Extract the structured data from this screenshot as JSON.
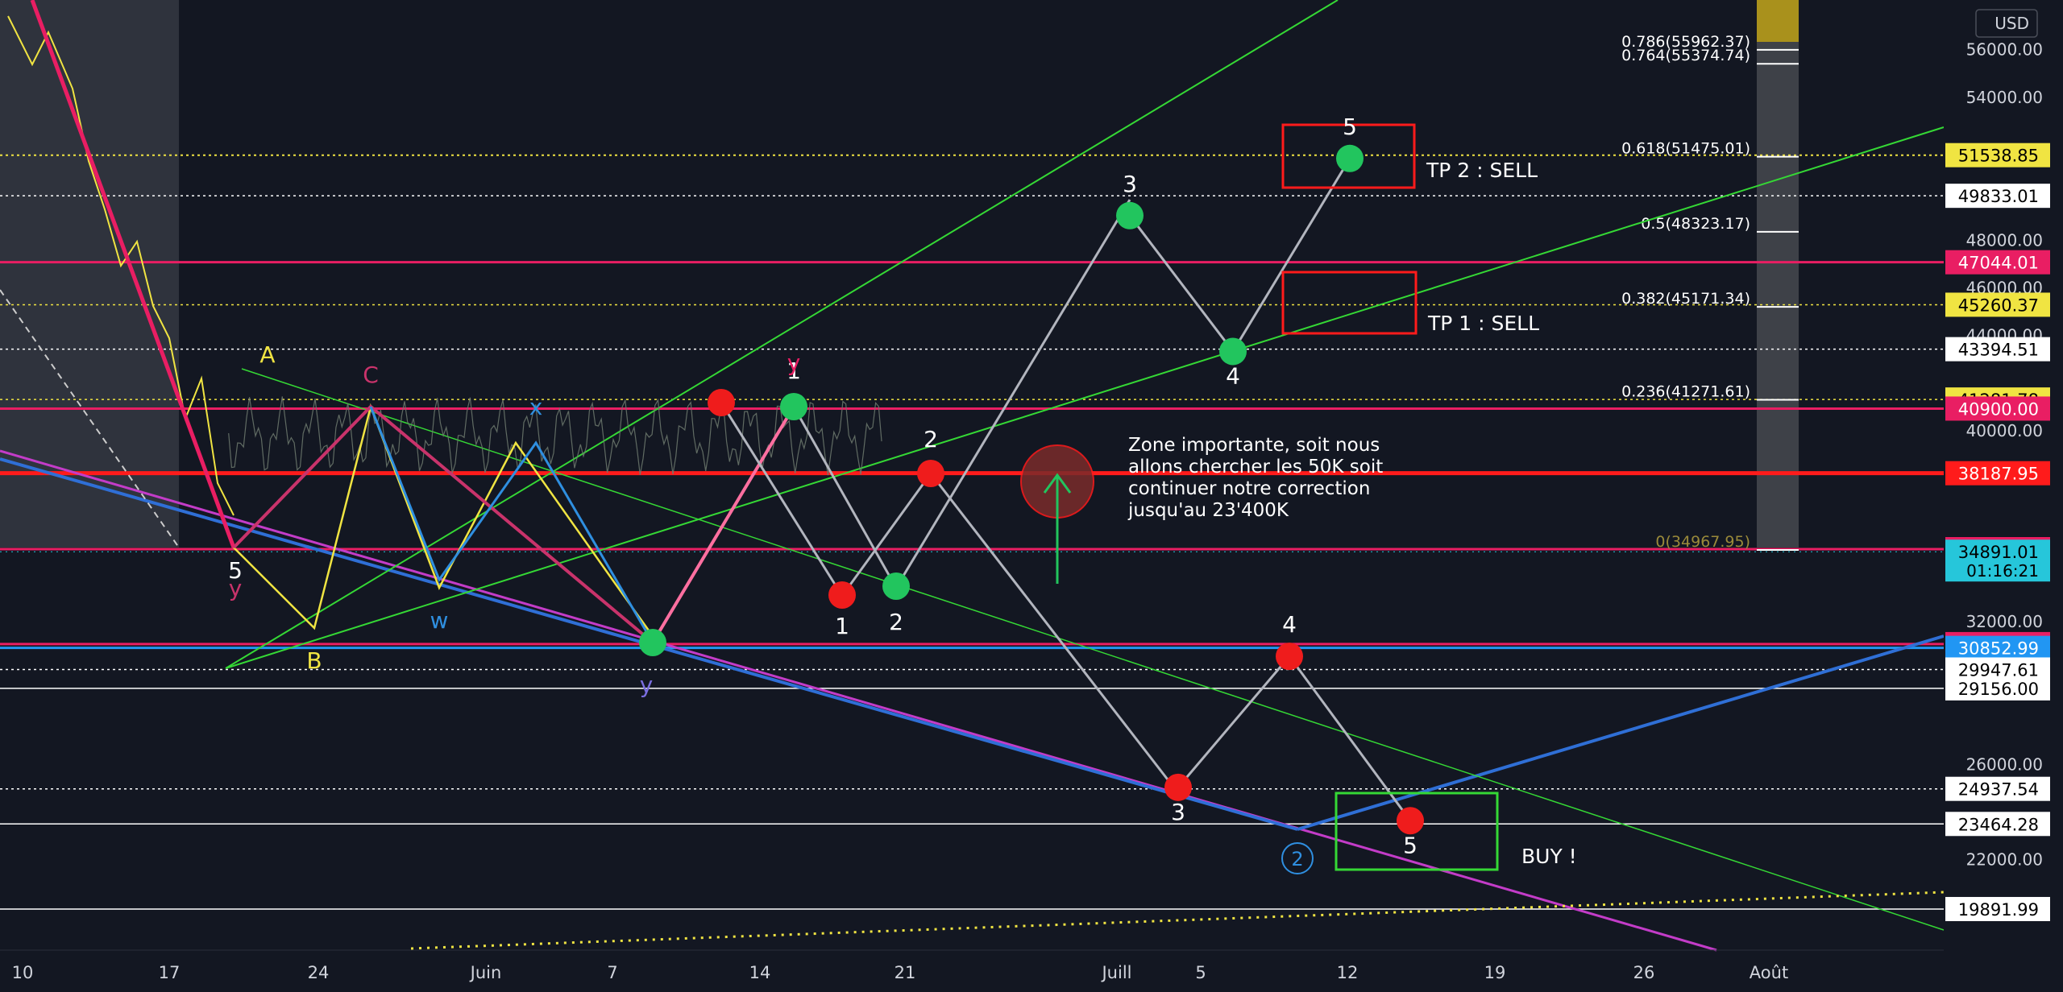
{
  "chart_data": {
    "type": "line",
    "price_axis": {
      "unit": "USD",
      "ticks": [
        56000,
        54000,
        48000,
        46000,
        44000,
        40000,
        32000,
        26000,
        22000
      ],
      "tick_labels": [
        "56000.00",
        "54000.00",
        "48000.00",
        "46000.00",
        "44000.00",
        "40000.00",
        "32000.00",
        "26000.00",
        "22000.00"
      ]
    },
    "time_axis": {
      "ticks": [
        "10",
        "17",
        "24",
        "Juin",
        "7",
        "14",
        "21",
        "Juill",
        "5",
        "12",
        "19",
        "26",
        "Août"
      ]
    },
    "price_tags": [
      {
        "label": "51538.85",
        "value": 51538.85,
        "color": "#f0e442",
        "text_color": "#000000"
      },
      {
        "label": "49833.01",
        "value": 49833.01,
        "color": "#ffffff",
        "text_color": "#000000"
      },
      {
        "label": "47044.01",
        "value": 47044.01,
        "color": "#e91e63",
        "text_color": "#ffffff"
      },
      {
        "label": "45260.37",
        "value": 45260.37,
        "color": "#f0e442",
        "text_color": "#000000"
      },
      {
        "label": "43394.51",
        "value": 43394.51,
        "color": "#ffffff",
        "text_color": "#000000"
      },
      {
        "label": "41281.78",
        "value": 41281.78,
        "color": "#f0e442",
        "text_color": "#000000"
      },
      {
        "label": "40900.00",
        "value": 40900.0,
        "color": "#e91e63",
        "text_color": "#ffffff"
      },
      {
        "label": "38187.95",
        "value": 38187.95,
        "color": "#ff1b1b",
        "text_color": "#ffffff"
      },
      {
        "label": "35000.00",
        "value": 35000.0,
        "color": "#e91e63",
        "text_color": "#ffffff"
      },
      {
        "label": "34891.01",
        "value": 34891.01,
        "color": "#26c6da",
        "text_color": "#000000",
        "sub": "01:16:21"
      },
      {
        "label": "31013.86",
        "value": 31013.86,
        "color": "#e91e63",
        "text_color": "#ffffff"
      },
      {
        "label": "30852.99",
        "value": 30852.99,
        "color": "#2196f3",
        "text_color": "#ffffff"
      },
      {
        "label": "29947.61",
        "value": 29947.61,
        "color": "#ffffff",
        "text_color": "#000000"
      },
      {
        "label": "29156.00",
        "value": 29156.0,
        "color": "#ffffff",
        "text_color": "#000000"
      },
      {
        "label": "24937.54",
        "value": 24937.54,
        "color": "#ffffff",
        "text_color": "#000000"
      },
      {
        "label": "23464.28",
        "value": 23464.28,
        "color": "#ffffff",
        "text_color": "#000000"
      },
      {
        "label": "19891.99",
        "value": 19891.99,
        "color": "#ffffff",
        "text_color": "#000000"
      }
    ],
    "fib_levels": [
      {
        "label": "0.786(55962.37)",
        "value": 55962.37
      },
      {
        "label": "0.764(55374.74)",
        "value": 55374.74
      },
      {
        "label": "0.618(51475.01)",
        "value": 51475.01
      },
      {
        "label": "0.5(48323.17)",
        "value": 48323.17
      },
      {
        "label": "0.382(45171.34)",
        "value": 45171.34
      },
      {
        "label": "0.236(41271.61)",
        "value": 41271.61
      },
      {
        "label": "0(34967.95)",
        "value": 34967.95
      }
    ],
    "bullish_path": {
      "labels": [
        "3",
        "4",
        "5"
      ],
      "prices": [
        49000,
        43300,
        51400
      ]
    },
    "bearish_path": {
      "labels": [
        "3",
        "4",
        "5"
      ],
      "prices": [
        25000,
        30500,
        23600
      ]
    },
    "wave_labels": [
      "1",
      "2",
      "1",
      "2",
      "y",
      "x",
      "w",
      "y",
      "A",
      "B",
      "C",
      "5",
      "y",
      "2"
    ],
    "annotations": {
      "tp2": "TP 2 : SELL",
      "tp1": "TP 1 : SELL",
      "buy": "BUY !",
      "zone_note": [
        "Zone importante, soit nous",
        "allons chercher les 50K soit",
        "continuer notre correction",
        "jusqu'au 23'400K"
      ]
    },
    "colors": {
      "background": "#131722",
      "bull_marker": "#22c55e",
      "bear_marker": "#ef1c1c",
      "path_line": "#b2b5be",
      "support": "#2f6fd6",
      "trend_green": "#35d835",
      "key_red": "#ff1b1b",
      "pink": "#e91e63"
    }
  }
}
